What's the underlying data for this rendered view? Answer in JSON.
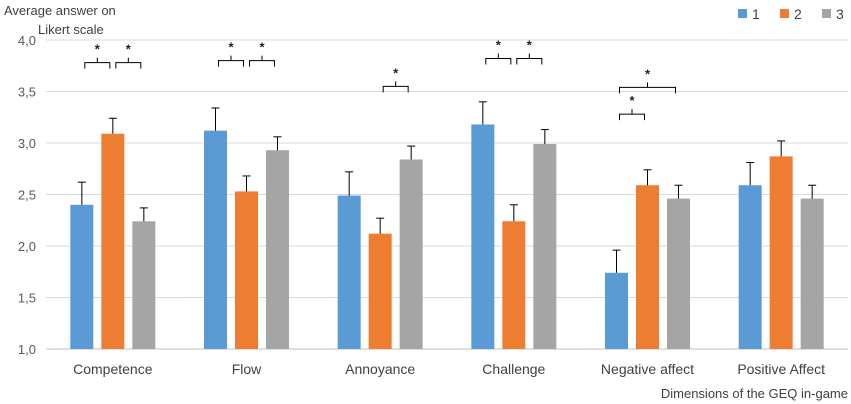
{
  "chart_data": {
    "type": "bar",
    "ylabel_line1": "Average answer on",
    "ylabel_line2": "Likert scale",
    "xlabel": "Dimensions of the GEQ in-game",
    "ylim": [
      1.0,
      4.0
    ],
    "yticks": [
      "1,0",
      "1,5",
      "2,0",
      "2,5",
      "3,0",
      "3,5",
      "4,0"
    ],
    "ytick_values": [
      1.0,
      1.5,
      2.0,
      2.5,
      3.0,
      3.5,
      4.0
    ],
    "categories": [
      "Competence",
      "Flow",
      "Annoyance",
      "Challenge",
      "Negative affect",
      "Positive Affect"
    ],
    "series": [
      {
        "name": "1",
        "color": "#5B9BD5",
        "values": [
          2.4,
          3.12,
          2.49,
          3.18,
          1.74,
          2.59
        ],
        "errors": [
          0.22,
          0.22,
          0.23,
          0.22,
          0.22,
          0.22
        ]
      },
      {
        "name": "2",
        "color": "#ED7D31",
        "values": [
          3.09,
          2.53,
          2.12,
          2.24,
          2.59,
          2.87
        ],
        "errors": [
          0.15,
          0.15,
          0.15,
          0.16,
          0.15,
          0.15
        ]
      },
      {
        "name": "3",
        "color": "#A5A5A5",
        "values": [
          2.24,
          2.93,
          2.84,
          2.99,
          2.46,
          2.46
        ],
        "errors": [
          0.13,
          0.13,
          0.13,
          0.14,
          0.13,
          0.13
        ]
      }
    ],
    "significance": [
      {
        "category": 0,
        "from": 0,
        "to": 1,
        "label": "*",
        "level": 3.78
      },
      {
        "category": 0,
        "from": 1,
        "to": 2,
        "label": "*",
        "level": 3.78
      },
      {
        "category": 1,
        "from": 0,
        "to": 1,
        "label": "*",
        "level": 3.8
      },
      {
        "category": 1,
        "from": 1,
        "to": 2,
        "label": "*",
        "level": 3.8
      },
      {
        "category": 2,
        "from": 1,
        "to": 2,
        "label": "*",
        "level": 3.55
      },
      {
        "category": 3,
        "from": 0,
        "to": 1,
        "label": "*",
        "level": 3.82
      },
      {
        "category": 3,
        "from": 1,
        "to": 2,
        "label": "*",
        "level": 3.82
      },
      {
        "category": 4,
        "from": 0,
        "to": 1,
        "label": "*",
        "level": 3.28
      },
      {
        "category": 4,
        "from": 0,
        "to": 2,
        "label": "*",
        "level": 3.54
      }
    ]
  }
}
